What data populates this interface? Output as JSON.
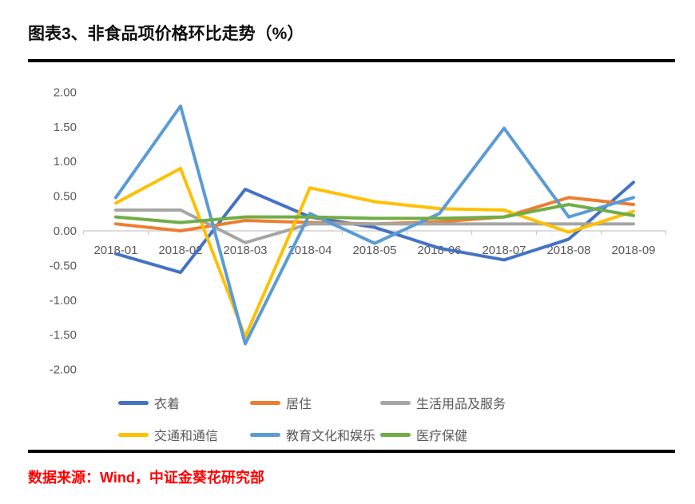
{
  "page": {
    "title": "图表3、非食品项价格环比走势（%）",
    "source": "数据来源：Wind，中证金葵花研究部"
  },
  "chart_data": {
    "type": "line",
    "title": "图表3、非食品项价格环比走势（%）",
    "categories": [
      "2018-01",
      "2018-02",
      "2018-03",
      "2018-04",
      "2018-05",
      "2018-06",
      "2018-07",
      "2018-08",
      "2018-09"
    ],
    "series": [
      {
        "name": "衣着",
        "color": "#4472C4",
        "values": [
          -0.33,
          -0.6,
          0.6,
          0.2,
          0.05,
          -0.25,
          -0.42,
          -0.12,
          0.7
        ]
      },
      {
        "name": "居住",
        "color": "#ED7D31",
        "values": [
          0.1,
          0.0,
          0.15,
          0.12,
          0.1,
          0.13,
          0.2,
          0.48,
          0.38
        ]
      },
      {
        "name": "生活用品及服务",
        "color": "#A5A5A5",
        "values": [
          0.3,
          0.3,
          -0.17,
          0.1,
          0.1,
          0.1,
          0.1,
          0.1,
          0.1
        ]
      },
      {
        "name": "交通和通信",
        "color": "#FFC000",
        "values": [
          0.4,
          0.9,
          -1.53,
          0.62,
          0.42,
          0.32,
          0.3,
          -0.02,
          0.28
        ]
      },
      {
        "name": "教育文化和娱乐",
        "color": "#5B9BD5",
        "values": [
          0.48,
          1.8,
          -1.63,
          0.25,
          -0.18,
          0.25,
          1.48,
          0.2,
          0.48
        ]
      },
      {
        "name": "医疗保健",
        "color": "#70AD47",
        "values": [
          0.2,
          0.12,
          0.2,
          0.2,
          0.18,
          0.18,
          0.2,
          0.38,
          0.22
        ]
      }
    ],
    "ylim": [
      -2.0,
      2.0
    ],
    "ytick_step": 0.5,
    "ytick_labels": [
      "2.00",
      "1.50",
      "1.00",
      "0.50",
      "0.00",
      "-0.50",
      "-1.00",
      "-1.50",
      "-2.00"
    ],
    "grid": false,
    "legend_position": "bottom",
    "legend_rows": [
      [
        "衣着",
        "居住",
        "生活用品及服务"
      ],
      [
        "交通和通信",
        "教育文化和娱乐",
        "医疗保健"
      ]
    ],
    "axis_color": "#c8c8c8",
    "label_color": "#595959",
    "source_color": "#ff0000"
  }
}
